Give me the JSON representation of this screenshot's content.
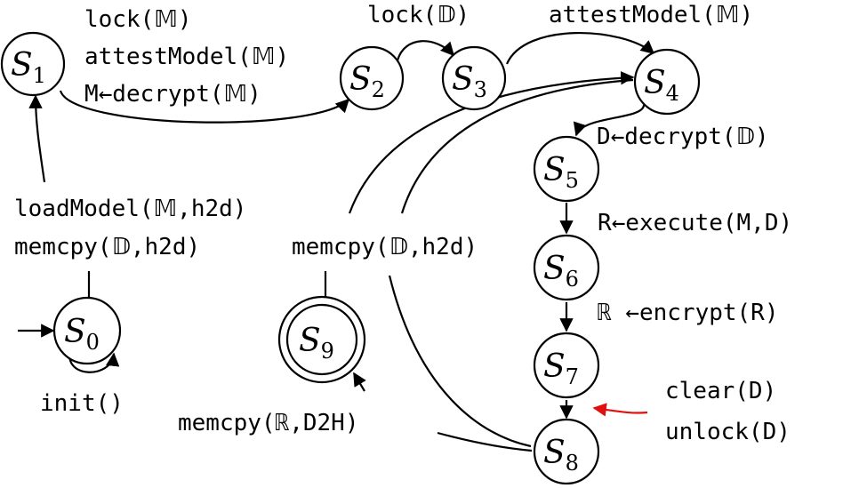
{
  "states": [
    {
      "id": "S0",
      "name": "S",
      "sub": "0"
    },
    {
      "id": "S1",
      "name": "S",
      "sub": "1"
    },
    {
      "id": "S2",
      "name": "S",
      "sub": "2"
    },
    {
      "id": "S3",
      "name": "S",
      "sub": "3"
    },
    {
      "id": "S4",
      "name": "S",
      "sub": "4"
    },
    {
      "id": "S5",
      "name": "S",
      "sub": "5"
    },
    {
      "id": "S6",
      "name": "S",
      "sub": "6"
    },
    {
      "id": "S7",
      "name": "S",
      "sub": "7"
    },
    {
      "id": "S8",
      "name": "S",
      "sub": "8"
    },
    {
      "id": "S9",
      "name": "S",
      "sub": "9",
      "accepting": true
    }
  ],
  "labels": {
    "s1_s2": [
      "lock(𝕄)",
      "attestModel(𝕄)",
      "M←decrypt(𝕄)"
    ],
    "s2_s3": "lock(𝔻)",
    "s3_s4": "attestModel(𝕄)",
    "s4_s5": "D←decrypt(𝔻)",
    "s5_s6": "R←execute(M,D)",
    "s6_s7": "ℝ ←encrypt(R)",
    "s7_s8": [
      "clear(D)",
      "unlock(D)"
    ],
    "s0_s1": [
      "loadModel(𝕄,h2d)",
      "memcpy(𝔻,h2d)"
    ],
    "s0_loop": "init()",
    "s9_s4": "memcpy(𝔻,h2d)",
    "s8_s9": "memcpy(ℝ,D2H)"
  },
  "colors": {
    "stroke": "#000000",
    "highlight_arrow": "#e01010"
  }
}
